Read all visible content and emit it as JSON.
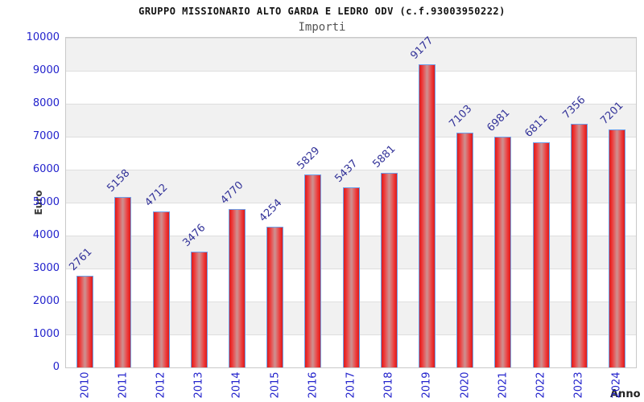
{
  "chart_data": {
    "type": "bar",
    "title": "GRUPPO MISSIONARIO ALTO GARDA E LEDRO ODV (c.f.93003950222)",
    "subtitle": "Importi",
    "xlabel": "Anno",
    "ylabel": "Euro",
    "categories": [
      "2010",
      "2011",
      "2012",
      "2013",
      "2014",
      "2015",
      "2016",
      "2017",
      "2018",
      "2019",
      "2020",
      "2021",
      "2022",
      "2023",
      "2024"
    ],
    "values": [
      2761,
      5158,
      4712,
      3476,
      4770,
      4254,
      5829,
      5437,
      5881,
      9177,
      7103,
      6981,
      6811,
      7356,
      7201
    ],
    "ylim": [
      0,
      10000
    ],
    "ytick_step": 1000,
    "grid": "horizontal-bands",
    "legend": "none",
    "colors": {
      "bar_edge": "#d81d1d",
      "bar_mid": "#cf8d8d",
      "bar_border": "#6da0ea",
      "axis_tick_label": "#2222cc",
      "value_label": "#333399",
      "band_gray": "#f1f1f1",
      "gridline": "#dedede",
      "frame": "#c9c9c9",
      "subtitle_text": "#555555",
      "axis_title_text": "#333333"
    }
  }
}
